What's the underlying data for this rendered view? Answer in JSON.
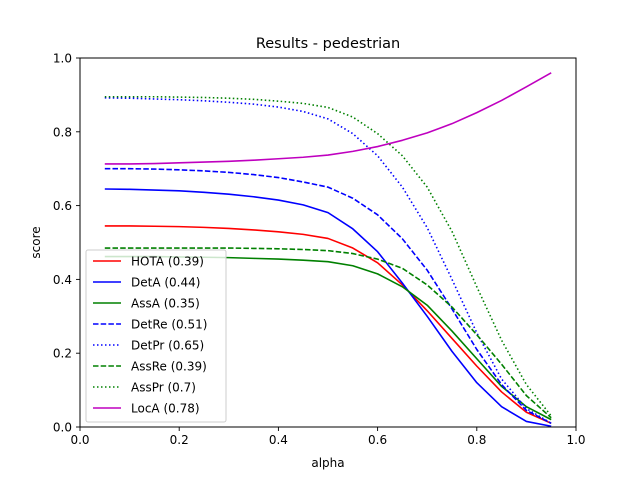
{
  "chart_data": {
    "type": "line",
    "title": "Results - pedestrian",
    "xlabel": "alpha",
    "ylabel": "score",
    "xlim": [
      0.0,
      1.0
    ],
    "ylim": [
      0.0,
      1.0
    ],
    "xticks": [
      "0.0",
      "0.2",
      "0.4",
      "0.6",
      "0.8",
      "1.0"
    ],
    "yticks": [
      "0.0",
      "0.2",
      "0.4",
      "0.6",
      "0.8",
      "1.0"
    ],
    "grid": false,
    "legend_position": "lower-left",
    "x": [
      0.05,
      0.1,
      0.15,
      0.2,
      0.25,
      0.3,
      0.35,
      0.4,
      0.45,
      0.5,
      0.55,
      0.6,
      0.65,
      0.7,
      0.75,
      0.8,
      0.85,
      0.9,
      0.95
    ],
    "series": [
      {
        "name": "HOTA (0.39)",
        "color": "#ff0000",
        "dash": "solid",
        "values": [
          0.545,
          0.545,
          0.544,
          0.543,
          0.541,
          0.538,
          0.534,
          0.529,
          0.522,
          0.511,
          0.485,
          0.445,
          0.385,
          0.315,
          0.24,
          0.165,
          0.095,
          0.04,
          0.01
        ]
      },
      {
        "name": "DetA (0.44)",
        "color": "#0000ff",
        "dash": "solid",
        "values": [
          0.645,
          0.644,
          0.642,
          0.64,
          0.636,
          0.631,
          0.624,
          0.615,
          0.602,
          0.581,
          0.537,
          0.475,
          0.39,
          0.3,
          0.205,
          0.12,
          0.055,
          0.015,
          0.002
        ]
      },
      {
        "name": "AssA (0.35)",
        "color": "#008000",
        "dash": "solid",
        "values": [
          0.462,
          0.462,
          0.462,
          0.461,
          0.46,
          0.459,
          0.457,
          0.455,
          0.452,
          0.448,
          0.437,
          0.415,
          0.38,
          0.33,
          0.26,
          0.185,
          0.11,
          0.055,
          0.02
        ]
      },
      {
        "name": "DetRe (0.51)",
        "color": "#0000ff",
        "dash": "dashed",
        "values": [
          0.7,
          0.7,
          0.699,
          0.697,
          0.694,
          0.69,
          0.684,
          0.676,
          0.664,
          0.65,
          0.62,
          0.575,
          0.51,
          0.425,
          0.32,
          0.21,
          0.115,
          0.045,
          0.01
        ]
      },
      {
        "name": "DetPr (0.65)",
        "color": "#0000ff",
        "dash": "dotted",
        "values": [
          0.892,
          0.891,
          0.889,
          0.887,
          0.884,
          0.88,
          0.875,
          0.867,
          0.855,
          0.835,
          0.795,
          0.735,
          0.65,
          0.54,
          0.4,
          0.255,
          0.13,
          0.05,
          0.01
        ]
      },
      {
        "name": "AssRe (0.39)",
        "color": "#008000",
        "dash": "dashed",
        "values": [
          0.485,
          0.485,
          0.485,
          0.485,
          0.485,
          0.485,
          0.484,
          0.483,
          0.481,
          0.478,
          0.47,
          0.455,
          0.43,
          0.385,
          0.325,
          0.25,
          0.17,
          0.085,
          0.025
        ]
      },
      {
        "name": "AssPr (0.7)",
        "color": "#008000",
        "dash": "dotted",
        "values": [
          0.895,
          0.895,
          0.895,
          0.894,
          0.893,
          0.891,
          0.888,
          0.883,
          0.877,
          0.866,
          0.84,
          0.795,
          0.735,
          0.65,
          0.53,
          0.38,
          0.235,
          0.115,
          0.03
        ]
      },
      {
        "name": "LocA (0.78)",
        "color": "#bf00bf",
        "dash": "solid",
        "values": [
          0.713,
          0.713,
          0.714,
          0.716,
          0.718,
          0.72,
          0.723,
          0.727,
          0.731,
          0.737,
          0.747,
          0.76,
          0.777,
          0.797,
          0.822,
          0.852,
          0.885,
          0.922,
          0.96
        ]
      }
    ]
  }
}
